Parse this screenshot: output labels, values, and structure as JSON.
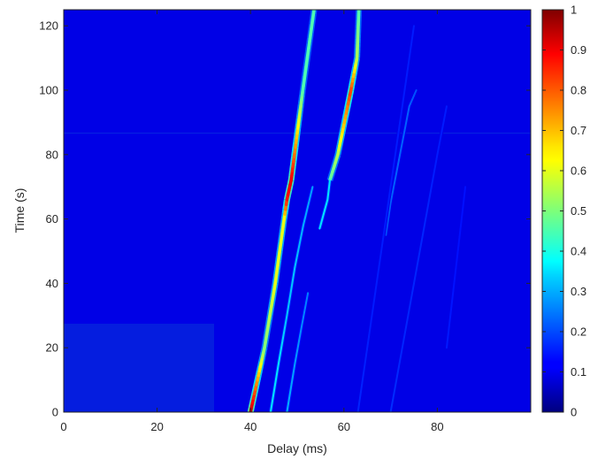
{
  "chart_data": {
    "type": "heatmap",
    "title": "",
    "xlabel": "Delay (ms)",
    "ylabel": "Time (s)",
    "xlim": [
      0,
      100
    ],
    "ylim": [
      0,
      125
    ],
    "x_ticks": [
      0,
      20,
      40,
      60,
      80
    ],
    "y_ticks": [
      0,
      20,
      40,
      60,
      80,
      100,
      120
    ],
    "colormap": "jet",
    "clim": [
      0,
      1
    ],
    "colorbar_ticks": [
      0,
      0.1,
      0.2,
      0.3,
      0.4,
      0.5,
      0.6,
      0.7,
      0.8,
      0.9,
      1
    ],
    "colorbar_tick_labels": [
      "0",
      "0.1",
      "0.2",
      "0.3",
      "0.4",
      "0.5",
      "0.6",
      "0.7",
      "0.8",
      "0.9",
      "1"
    ],
    "background_level": 0.1,
    "ridges": [
      {
        "segments": [
          {
            "points": [
              [
                40.0,
                0
              ],
              [
                43.0,
                20
              ],
              [
                45.3,
                40
              ],
              [
                47.2,
                60
              ],
              [
                47.8,
                66
              ],
              [
                48.7,
                72
              ],
              [
                51.2,
                100
              ],
              [
                53.6,
                125
              ]
            ],
            "levels": [
              0.95,
              0.5,
              0.6,
              0.6,
              0.85,
              0.9,
              0.45,
              0.45
            ]
          }
        ]
      },
      {
        "segments": [
          {
            "points": [
              [
                57.0,
                72
              ],
              [
                58.7,
                80
              ],
              [
                61.5,
                100
              ],
              [
                62.8,
                110
              ],
              [
                63.2,
                125
              ]
            ],
            "levels": [
              0.45,
              0.55,
              0.82,
              0.55,
              0.45
            ]
          },
          {
            "points": [
              [
                54.8,
                57
              ],
              [
                56.5,
                66
              ],
              [
                57.0,
                72
              ]
            ],
            "levels": [
              0.35,
              0.35,
              0.35
            ]
          }
        ]
      },
      {
        "segments": [
          {
            "points": [
              [
                44.3,
                0
              ],
              [
                46.0,
                15
              ],
              [
                47.8,
                30
              ],
              [
                49.5,
                45
              ],
              [
                51.3,
                58
              ],
              [
                53.3,
                70
              ]
            ],
            "levels": [
              0.35,
              0.35,
              0.32,
              0.32,
              0.3,
              0.28
            ]
          }
        ]
      },
      {
        "segments": [
          {
            "points": [
              [
                47.8,
                0
              ],
              [
                49.5,
                15
              ],
              [
                51.0,
                27
              ],
              [
                52.3,
                37
              ]
            ],
            "levels": [
              0.3,
              0.28,
              0.26,
              0.25
            ]
          }
        ]
      },
      {
        "segments": [
          {
            "points": [
              [
                69.0,
                55
              ],
              [
                70.0,
                65
              ],
              [
                72.0,
                80
              ],
              [
                74.0,
                95
              ],
              [
                75.5,
                100
              ]
            ],
            "levels": [
              0.2,
              0.22,
              0.22,
              0.22,
              0.2
            ]
          }
        ]
      },
      {
        "segments": [
          {
            "points": [
              [
                70.0,
                0
              ],
              [
                72.5,
                20
              ],
              [
                75.0,
                40
              ],
              [
                77.5,
                60
              ],
              [
                80.0,
                80
              ],
              [
                82.0,
                95
              ]
            ],
            "levels": [
              0.17,
              0.16,
              0.16,
              0.16,
              0.15,
              0.15
            ]
          }
        ]
      },
      {
        "segments": [
          {
            "points": [
              [
                63.0,
                0
              ],
              [
                66.0,
                30
              ],
              [
                69.0,
                60
              ],
              [
                72.0,
                90
              ],
              [
                75.0,
                120
              ]
            ],
            "levels": [
              0.16,
              0.15,
              0.15,
              0.15,
              0.15
            ]
          }
        ]
      },
      {
        "segments": [
          {
            "points": [
              [
                82.0,
                20
              ],
              [
                84.0,
                45
              ],
              [
                86.0,
                70
              ]
            ],
            "levels": [
              0.15,
              0.14,
              0.14
            ]
          }
        ]
      }
    ]
  }
}
